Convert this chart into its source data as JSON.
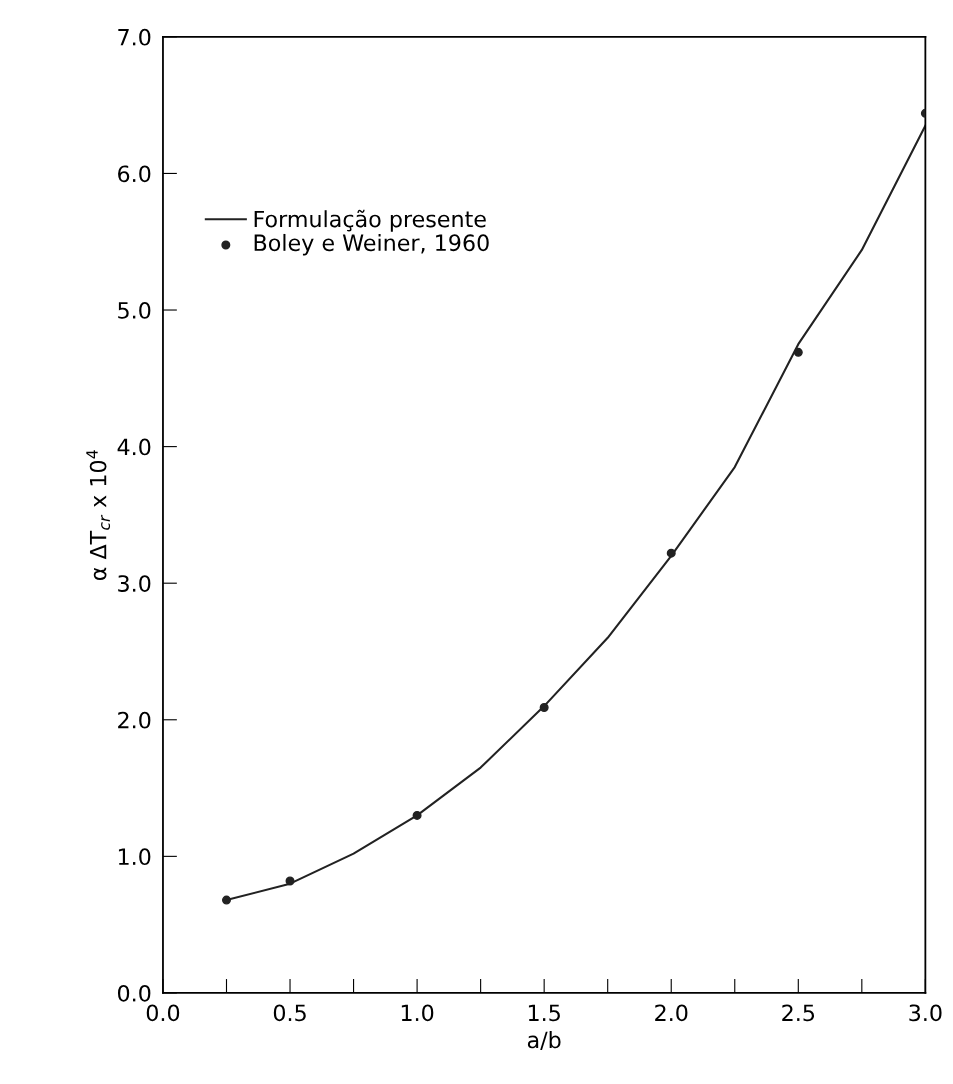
{
  "chart_data": {
    "type": "line",
    "xlabel": "a/b",
    "ylabel": "α ΔT$_{cr}$ x 10$^{4}$",
    "xlim": [
      0,
      3.0
    ],
    "ylim": [
      0,
      7.0
    ],
    "xticks": [
      {
        "value": 0,
        "label": "0.0"
      },
      {
        "value": 0.25,
        "label": null
      },
      {
        "value": 0.5,
        "label": "0.5"
      },
      {
        "value": 0.75,
        "label": null
      },
      {
        "value": 1.0,
        "label": "1.0"
      },
      {
        "value": 1.25,
        "label": null
      },
      {
        "value": 1.5,
        "label": "1.5"
      },
      {
        "value": 1.75,
        "label": null
      },
      {
        "value": 2.0,
        "label": "2.0"
      },
      {
        "value": 2.25,
        "label": null
      },
      {
        "value": 2.5,
        "label": "2.5"
      },
      {
        "value": 2.75,
        "label": null
      },
      {
        "value": 3.0,
        "label": "3.0"
      }
    ],
    "yticks": [
      {
        "value": 0,
        "label": "0.0"
      },
      {
        "value": 1,
        "label": "1.0"
      },
      {
        "value": 2,
        "label": "2.0"
      },
      {
        "value": 3,
        "label": "3.0"
      },
      {
        "value": 4,
        "label": "4.0"
      },
      {
        "value": 5,
        "label": "5.0"
      },
      {
        "value": 6,
        "label": "6.0"
      },
      {
        "value": 7,
        "label": "7.0"
      }
    ],
    "grid": false,
    "legend": "top left",
    "series": [
      {
        "name": "Formulação presente",
        "color": "#222222",
        "marker": "none",
        "line_style": "solid",
        "x": [
          0.25,
          0.5,
          0.75,
          1.0,
          1.25,
          1.5,
          1.75,
          2.0,
          2.25,
          2.5,
          2.75,
          3.0
        ],
        "values": [
          0.68,
          0.8,
          1.02,
          1.3,
          1.65,
          2.1,
          2.6,
          3.2,
          3.85,
          4.75,
          5.44,
          6.35
        ]
      },
      {
        "name": "Boley e Weiner, 1960",
        "type": "scatter",
        "color": "#222222",
        "marker": "circle",
        "x": [
          0.25,
          0.5,
          1.0,
          1.5,
          2.0,
          2.5,
          3.0
        ],
        "values": [
          0.68,
          0.82,
          1.3,
          2.09,
          3.22,
          4.69,
          6.44
        ]
      }
    ]
  }
}
